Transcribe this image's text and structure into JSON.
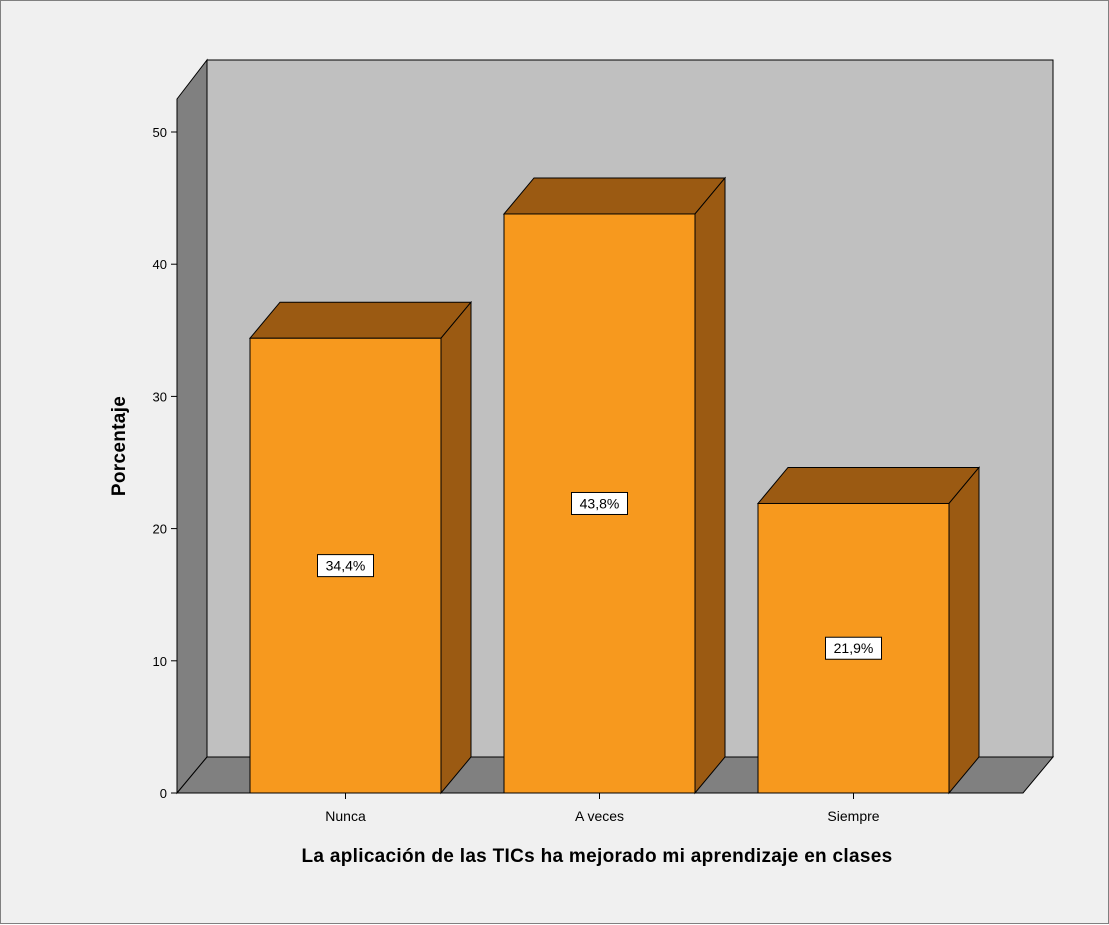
{
  "chart_data": {
    "type": "bar",
    "style": "3d",
    "categories": [
      "Nunca",
      "A veces",
      "Siempre"
    ],
    "values": [
      34.4,
      43.8,
      21.9
    ],
    "data_labels": [
      "34,4%",
      "43,8%",
      "21,9%"
    ],
    "xlabel": "La aplicación de las TICs ha mejorado mi aprendizaje en clases",
    "ylabel": "Porcentaje",
    "ylim": [
      0,
      50
    ],
    "yticks": [
      "0",
      "10",
      "20",
      "30",
      "40",
      "50"
    ],
    "grid": false,
    "legend": "none"
  },
  "colors": {
    "bar_front": "#f7991e",
    "bar_side": "#9b5a12",
    "back_wall": "#c0c0c0",
    "side_wall": "#808080",
    "floor": "#808080",
    "frame_background": "#f0f0f0"
  }
}
